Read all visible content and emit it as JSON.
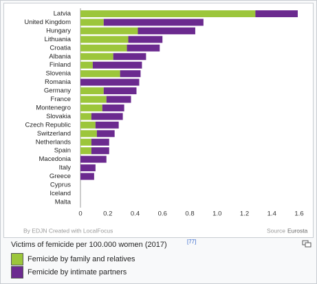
{
  "chart_data": {
    "type": "bar",
    "orientation": "horizontal",
    "stacked": true,
    "title": "Victims of femicide per 100.000 women (2017)",
    "reference": "[77]",
    "credit": "By EDJN Created with LocalFocus",
    "source_label": "Source",
    "source_link": "Eurosta",
    "categories": [
      "Latvia",
      "United Kingdom",
      "Hungary",
      "Lithuania",
      "Croatia",
      "Albania",
      "Finland",
      "Slovenia",
      "Romania",
      "Germany",
      "France",
      "Montenegro",
      "Slovakia",
      "Czech Republic",
      "Switzerland",
      "Netherlands",
      "Spain",
      "Macedonia",
      "Italy",
      "Greece",
      "Cyprus",
      "Iceland",
      "Malta"
    ],
    "series": [
      {
        "name": "Femicide by family and relatives",
        "color": "#9cc63b",
        "values": [
          1.28,
          0.17,
          0.42,
          0.35,
          0.34,
          0.24,
          0.09,
          0.29,
          0,
          0.17,
          0.19,
          0.16,
          0.08,
          0.11,
          0.12,
          0.08,
          0.08,
          0,
          0,
          0,
          0,
          0,
          0
        ]
      },
      {
        "name": "Femicide by intimate partners",
        "color": "#6b2a8f",
        "values": [
          0.31,
          0.73,
          0.42,
          0.25,
          0.24,
          0.24,
          0.36,
          0.15,
          0.43,
          0.24,
          0.18,
          0.16,
          0.23,
          0.17,
          0.13,
          0.13,
          0.13,
          0.19,
          0.11,
          0.1,
          0,
          0,
          0
        ]
      }
    ],
    "xlim": [
      0,
      1.6
    ],
    "xticks": [
      0,
      0.2,
      0.4,
      0.6,
      0.8,
      {
        "value": 1,
        "label": "1.0"
      },
      1.2,
      1.4,
      1.6
    ],
    "grid": false
  }
}
